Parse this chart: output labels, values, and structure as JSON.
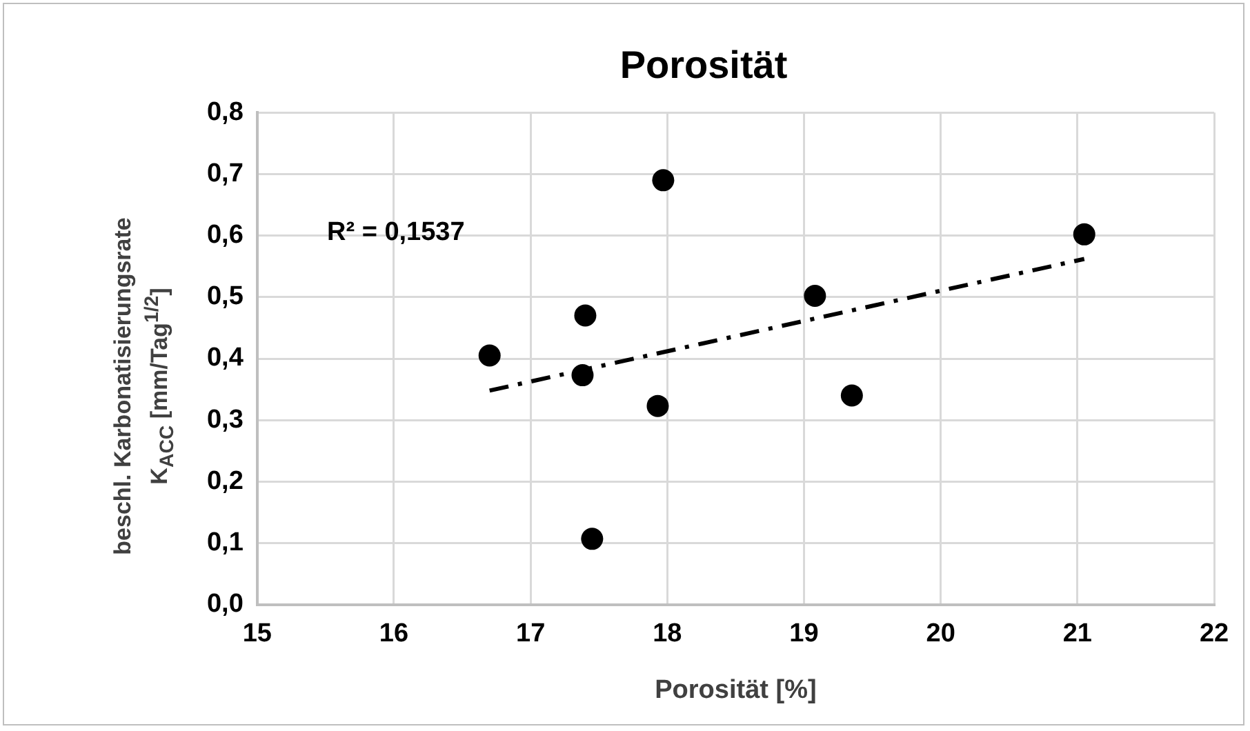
{
  "chart_data": {
    "type": "scatter",
    "title": "Porosität",
    "xlabel": "Porosität [%]",
    "ylabel": "beschl. Karbonatisierungsrate\nK$_{ACC}$ [mm/Tag$^{1/2}$]",
    "x": [
      16.7,
      17.38,
      17.4,
      17.45,
      17.93,
      17.97,
      19.08,
      19.35,
      21.05
    ],
    "series": [
      {
        "color": "#000000",
        "values": [
          0.405,
          0.373,
          0.47,
          0.107,
          0.323,
          0.69,
          0.502,
          0.34,
          0.602
        ],
        "marker": "circle"
      },
      {
        "type": "line",
        "x": [
          16.7,
          21.05
        ],
        "values": [
          0.348,
          0.562
        ],
        "color": "#000000",
        "line_style": "dashed",
        "marker": "none"
      }
    ],
    "xlim": [
      15,
      22
    ],
    "xticks": [
      15,
      16,
      17,
      18,
      19,
      20,
      21,
      22
    ],
    "ylim": [
      0,
      0.8
    ],
    "yticks": [
      {
        "value": 0,
        "label": "0,0"
      },
      {
        "value": 0.1,
        "label": "0,1"
      },
      {
        "value": 0.2,
        "label": "0,2"
      },
      {
        "value": 0.3,
        "label": "0,3"
      },
      {
        "value": 0.4,
        "label": "0,4"
      },
      {
        "value": 0.5,
        "label": "0,5"
      },
      {
        "value": 0.6,
        "label": "0,6"
      },
      {
        "value": 0.7,
        "label": "0,7"
      },
      {
        "value": 0.8,
        "label": "0,8"
      }
    ],
    "grid": true,
    "legend": false,
    "annotations": [
      "R² = 0,1537"
    ]
  }
}
